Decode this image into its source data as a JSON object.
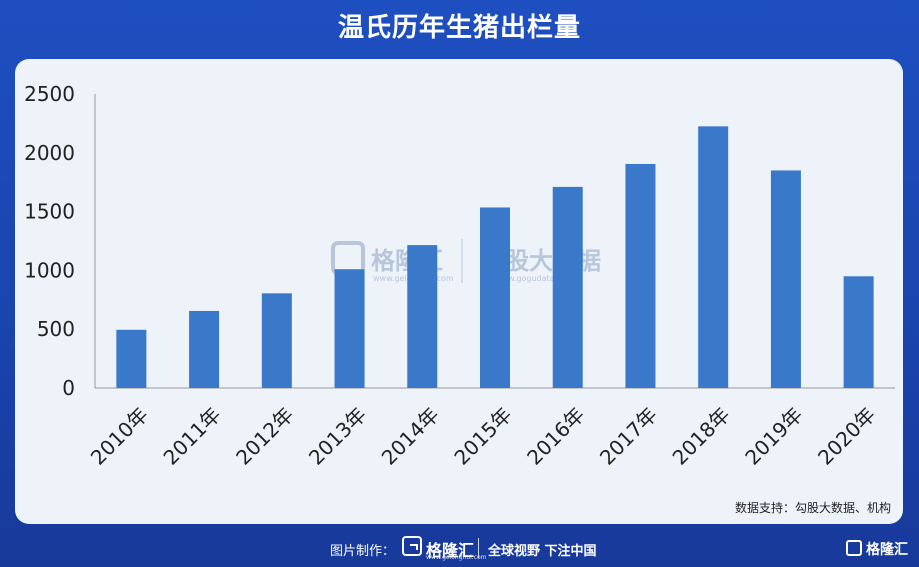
{
  "header": {
    "title": "温氏历年生猪出栏量"
  },
  "chart_data": {
    "type": "bar",
    "title": "温氏历年生猪出栏量",
    "xlabel": "",
    "ylabel": "",
    "categories": [
      "2010年",
      "2011年",
      "2012年",
      "2013年",
      "2014年",
      "2015年",
      "2016年",
      "2017年",
      "2018年",
      "2019年",
      "2020年"
    ],
    "values": [
      495,
      655,
      805,
      1010,
      1215,
      1535,
      1710,
      1905,
      2225,
      1850,
      950
    ],
    "ylim": [
      0,
      2500
    ],
    "yticks": [
      0,
      500,
      1000,
      1500,
      2000,
      2500
    ],
    "grid": false,
    "bar_color": "#3a79c9"
  },
  "watermark": {
    "brand1": "格隆汇",
    "url1": "www.gelonghui.com",
    "brand2": "勾股大数据",
    "url2": "www.gogudata.com"
  },
  "source": "数据支持：勾股大数据、机构",
  "footer": {
    "credit": "图片制作：",
    "brand": "格隆汇",
    "brand_url": "www.gelonghui.com",
    "slogan": "全球视野 下注中国",
    "corner_brand": "格隆汇"
  }
}
